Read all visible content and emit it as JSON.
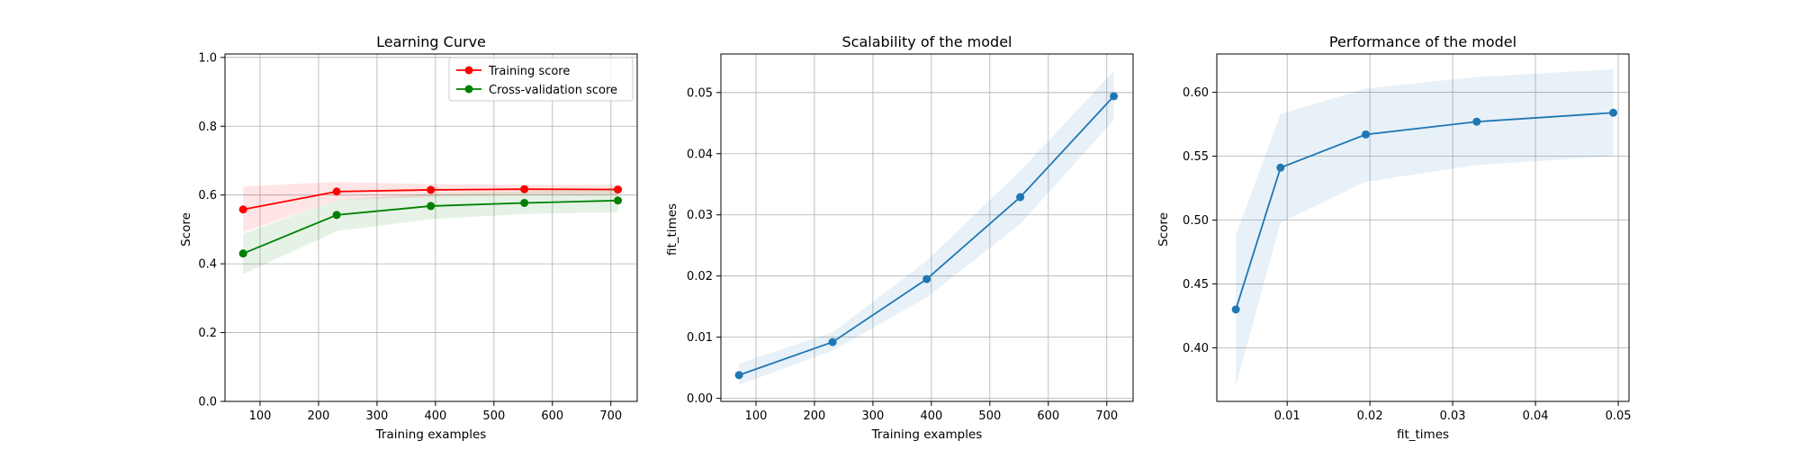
{
  "chart_data": [
    {
      "type": "line",
      "title": "Learning Curve",
      "xlabel": "Training examples",
      "ylabel": "Score",
      "xlim": [
        40,
        745
      ],
      "ylim": [
        0.0,
        1.01
      ],
      "xticks": [
        100,
        200,
        300,
        400,
        500,
        600,
        700
      ],
      "yticks": [
        0.0,
        0.2,
        0.4,
        0.6,
        0.8,
        1.0
      ],
      "xtick_labels": [
        "100",
        "200",
        "300",
        "400",
        "500",
        "600",
        "700"
      ],
      "ytick_labels": [
        "0.0",
        "0.2",
        "0.4",
        "0.6",
        "0.8",
        "1.0"
      ],
      "grid": true,
      "legend": "top-right",
      "x": [
        71,
        231,
        392,
        552,
        712
      ],
      "series": [
        {
          "name": "Training score",
          "color": "#ff0000",
          "values": [
            0.558,
            0.61,
            0.615,
            0.617,
            0.616
          ],
          "band_lower": [
            0.492,
            0.585,
            0.595,
            0.6,
            0.6
          ],
          "band_upper": [
            0.625,
            0.638,
            0.632,
            0.63,
            0.63
          ]
        },
        {
          "name": "Cross-validation score",
          "color": "#008000",
          "values": [
            0.43,
            0.542,
            0.568,
            0.577,
            0.584
          ],
          "band_lower": [
            0.37,
            0.495,
            0.53,
            0.545,
            0.55
          ],
          "band_upper": [
            0.488,
            0.585,
            0.605,
            0.61,
            0.618
          ]
        }
      ]
    },
    {
      "type": "line",
      "title": "Scalability of the model",
      "xlabel": "Training examples",
      "ylabel": "fit_times",
      "xlim": [
        40,
        745
      ],
      "ylim": [
        -0.0005,
        0.0563
      ],
      "xticks": [
        100,
        200,
        300,
        400,
        500,
        600,
        700
      ],
      "yticks": [
        0.0,
        0.01,
        0.02,
        0.03,
        0.04,
        0.05
      ],
      "xtick_labels": [
        "100",
        "200",
        "300",
        "400",
        "500",
        "600",
        "700"
      ],
      "ytick_labels": [
        "0.00",
        "0.01",
        "0.02",
        "0.03",
        "0.04",
        "0.05"
      ],
      "grid": true,
      "x": [
        71,
        231,
        392,
        552,
        712
      ],
      "series": [
        {
          "color": "#1f77b4",
          "values": [
            0.0038,
            0.0092,
            0.0195,
            0.0329,
            0.0494
          ],
          "band_lower": [
            0.0022,
            0.0078,
            0.0165,
            0.0285,
            0.0455
          ],
          "band_upper": [
            0.0057,
            0.0108,
            0.0225,
            0.0372,
            0.0535
          ]
        }
      ]
    },
    {
      "type": "line",
      "title": "Performance of the model",
      "xlabel": "fit_times",
      "ylabel": "Score",
      "xlim": [
        0.0015,
        0.0513
      ],
      "ylim": [
        0.358,
        0.63
      ],
      "xticks": [
        0.01,
        0.02,
        0.03,
        0.04,
        0.05
      ],
      "yticks": [
        0.4,
        0.45,
        0.5,
        0.55,
        0.6
      ],
      "xtick_labels": [
        "0.01",
        "0.02",
        "0.03",
        "0.04",
        "0.05"
      ],
      "ytick_labels": [
        "0.40",
        "0.45",
        "0.50",
        "0.55",
        "0.60"
      ],
      "grid": true,
      "x": [
        0.0038,
        0.0092,
        0.0195,
        0.0329,
        0.0494
      ],
      "series": [
        {
          "color": "#1f77b4",
          "values": [
            0.43,
            0.541,
            0.567,
            0.577,
            0.584
          ],
          "band_lower": [
            0.37,
            0.498,
            0.53,
            0.543,
            0.55
          ],
          "band_upper": [
            0.488,
            0.583,
            0.603,
            0.612,
            0.618
          ]
        }
      ]
    }
  ]
}
